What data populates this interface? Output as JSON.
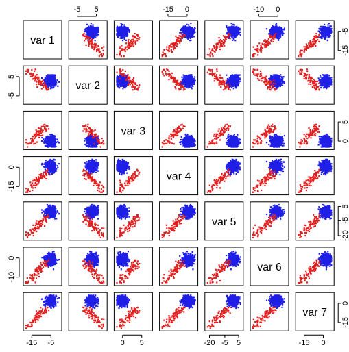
{
  "chart_data": {
    "type": "scatter",
    "variables": [
      "var 1",
      "var 2",
      "var 3",
      "var 4",
      "var 5",
      "var 6",
      "var 7"
    ],
    "series": [
      {
        "color": "#1f1fe6"
      },
      {
        "color": "#e01e1e"
      }
    ],
    "axes": {
      "top": [
        {
          "var_index": 1,
          "ticks": [
            "-5",
            "5"
          ]
        },
        {
          "var_index": 3,
          "ticks": [
            "-15",
            "0"
          ]
        },
        {
          "var_index": 5,
          "ticks": [
            "-10",
            "0"
          ]
        }
      ],
      "bottom": [
        {
          "var_index": 0,
          "ticks": [
            "-15",
            "-5"
          ]
        },
        {
          "var_index": 2,
          "ticks": [
            "0",
            "5"
          ]
        },
        {
          "var_index": 4,
          "ticks": [
            "-20",
            "-5",
            "5"
          ]
        },
        {
          "var_index": 6,
          "ticks": [
            "-15",
            "0"
          ]
        }
      ],
      "left": [
        {
          "var_index": 1,
          "ticks": [
            "-5",
            "5"
          ]
        },
        {
          "var_index": 3,
          "ticks": [
            "-15",
            "0"
          ]
        },
        {
          "var_index": 5,
          "ticks": [
            "-10",
            "0"
          ]
        }
      ],
      "right": [
        {
          "var_index": 0,
          "ticks": [
            "-15",
            "-5"
          ]
        },
        {
          "var_index": 2,
          "ticks": [
            "0",
            "5"
          ]
        },
        {
          "var_index": 4,
          "ticks": [
            "-20",
            "-5",
            "5"
          ]
        },
        {
          "var_index": 6,
          "ticks": [
            "-15",
            "0"
          ]
        }
      ]
    }
  }
}
